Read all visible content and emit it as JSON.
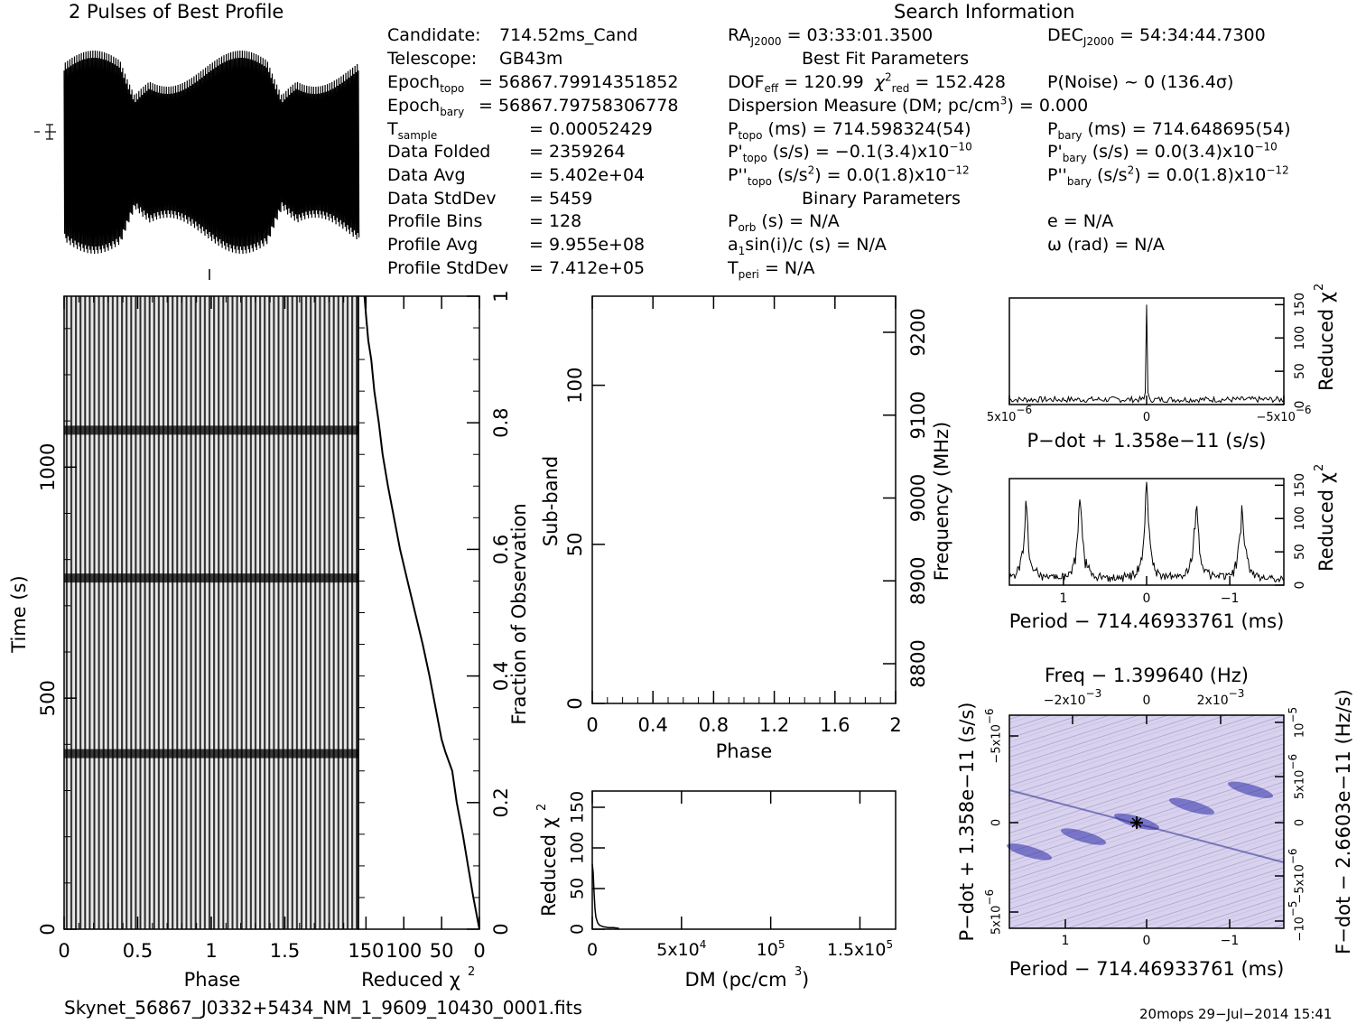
{
  "header": {
    "profile_title": "2 Pulses of Best Profile",
    "search_title": "Search Information",
    "best_fit_title": "Best Fit Parameters",
    "binary_title": "Binary Parameters"
  },
  "info_left": [
    {
      "label": "Candidate:",
      "value": "714.52ms_Cand"
    },
    {
      "label": "Telescope:",
      "value": "GB43m"
    },
    {
      "label": "Epoch",
      "sub": "topo",
      "value": "= 56867.79914351852"
    },
    {
      "label": "Epoch",
      "sub": "bary",
      "value": "= 56867.79758306778"
    },
    {
      "label": "T",
      "sub": "sample",
      "value": "=   0.00052429"
    },
    {
      "label": "Data Folded",
      "value": "=   2359264"
    },
    {
      "label": "Data Avg",
      "value": "=   5.402e+04"
    },
    {
      "label": "Data StdDev",
      "value": "=   5459"
    },
    {
      "label": "Profile Bins",
      "value": "=   128"
    },
    {
      "label": "Profile Avg",
      "value": "=   9.955e+08"
    },
    {
      "label": "Profile StdDev",
      "value": "=   7.412e+05"
    }
  ],
  "search": {
    "ra": "= 03:33:01.3500",
    "dec": "= 54:34:44.7300",
    "dof": "= 120.99",
    "chi2": "= 152.428",
    "pnoise": "P(Noise) ~ 0    (136.4σ)",
    "dm": "Dispersion Measure (DM; pc/cm",
    "dm_value": ") = 0.000",
    "ptopo": "(ms) =  714.598324(54)",
    "pbary": "(ms) =  714.648695(54)",
    "pdtopo": "(s/s) = −0.1(3.4)x10",
    "pdbary": "(s/s) = 0.0(3.4)x10",
    "pddtopo": "(s/s",
    "pddtopo_val": ") = 0.0(1.8)x10",
    "pddbary_val": ") = 0.0(1.8)x10",
    "exp10": "−10",
    "exp12": "−12",
    "porb": "(s) = N/A",
    "e": "e = N/A",
    "a1": "a",
    "a1_rest": "sin(i)/c (s) = N/A",
    "omega": "ω (rad) = N/A",
    "tperi": "= N/A"
  },
  "footer": {
    "filename": "Skynet_56867_J0332+5434_NM_1_9609_10430_0001.fits",
    "stamp": "20mops 29−Jul−2014 15:41"
  },
  "chart_data": [
    {
      "type": "line",
      "name": "profile",
      "title": "2 Pulses of Best Profile",
      "description_shape": "rapidly oscillating profile, envelope narrow in middle near phase 0.4-0.55 and 1.4-1.55"
    },
    {
      "type": "heatmap",
      "name": "time-phase",
      "xlabel": "Phase",
      "ylabel": "Time (s)",
      "x_ticks": [
        "0",
        "0.5",
        "1",
        "1.5"
      ],
      "y_ticks": [
        "0",
        "500",
        "1000"
      ],
      "xlim": [
        0,
        2
      ],
      "ylim": [
        0,
        1370
      ],
      "dark_rows_time": [
        1080,
        760,
        380
      ]
    },
    {
      "type": "line",
      "name": "reduced-chi2-vs-time",
      "xlabel": "Reduced χ",
      "x_ticks": [
        "150",
        "100",
        "50",
        "0"
      ],
      "y2label": "Fraction of Observation",
      "y2_ticks": [
        "0",
        "0.2",
        "0.4",
        "0.6",
        "0.8",
        "1"
      ],
      "points": [
        [
          0,
          0
        ],
        [
          8,
          0.05
        ],
        [
          15,
          0.1
        ],
        [
          22,
          0.15
        ],
        [
          30,
          0.2
        ],
        [
          36,
          0.25
        ],
        [
          45,
          0.28
        ],
        [
          50,
          0.3
        ],
        [
          58,
          0.35
        ],
        [
          66,
          0.4
        ],
        [
          75,
          0.45
        ],
        [
          85,
          0.5
        ],
        [
          95,
          0.55
        ],
        [
          105,
          0.6
        ],
        [
          113,
          0.65
        ],
        [
          121,
          0.7
        ],
        [
          128,
          0.75
        ],
        [
          133,
          0.8
        ],
        [
          139,
          0.85
        ],
        [
          143,
          0.9
        ],
        [
          147,
          0.93
        ],
        [
          150,
          0.97
        ],
        [
          152,
          1.0
        ]
      ]
    },
    {
      "type": "heatmap",
      "name": "subband-phase",
      "xlabel": "Phase",
      "ylabel": "Sub-band",
      "y2label": "Frequency (MHz)",
      "x_ticks": [
        "0",
        "0.4",
        "0.8",
        "1.2",
        "1.6",
        "2"
      ],
      "y_ticks": [
        "0",
        "50",
        "100"
      ],
      "y2_ticks": [
        "8800",
        "8900",
        "9000",
        "9100",
        "9200"
      ],
      "xlim": [
        0,
        2
      ],
      "ylim": [
        0,
        128
      ]
    },
    {
      "type": "line",
      "name": "dm-curve",
      "xlabel": "DM (pc/cm",
      "ylabel": "Reduced χ",
      "x_ticks": [
        "0",
        "5x10",
        "10",
        "1.5x10"
      ],
      "x_exps": [
        "",
        "4",
        "5",
        "5"
      ],
      "y_ticks": [
        "0",
        "50",
        "100",
        "150"
      ],
      "xlim": [
        0,
        170000
      ],
      "ylim": [
        0,
        170
      ],
      "points": [
        [
          0,
          80
        ],
        [
          500,
          70
        ],
        [
          1000,
          45
        ],
        [
          1500,
          25
        ],
        [
          2000,
          15
        ],
        [
          3000,
          8
        ],
        [
          4000,
          5
        ],
        [
          6000,
          3
        ],
        [
          9000,
          2
        ],
        [
          12000,
          2
        ],
        [
          15000,
          1
        ]
      ]
    },
    {
      "type": "line",
      "name": "pdot-curve",
      "xlabel": "P−dot + 1.358e−11 (s/s)",
      "ylabel": "Reduced χ",
      "x_ticks": [
        "5x10",
        "0",
        "−5x10"
      ],
      "x_exps": [
        "−6",
        "",
        "−6"
      ],
      "y_ticks": [
        "0",
        "50",
        "100",
        "150"
      ]
    },
    {
      "type": "line",
      "name": "period-curve",
      "xlabel": "Period − 714.46933761 (ms)",
      "ylabel": "Reduced χ",
      "x_ticks": [
        "1",
        "0",
        "−1"
      ],
      "y_ticks": [
        "0",
        "50",
        "100",
        "150"
      ],
      "peaks_x": [
        1.45,
        0.8,
        0.0,
        -0.6,
        -1.15
      ]
    },
    {
      "type": "heatmap",
      "name": "period-pdot",
      "title": "Freq − 1.399640 (Hz)",
      "xlabel": "Period − 714.46933761 (ms)",
      "ylabel": "P−dot + 1.358e−11 (s/s)",
      "y2label": "F−dot − 2.6603e−11 (Hz/s)",
      "top_ticks": [
        "−2x10",
        "0",
        "2x10"
      ],
      "top_exps": [
        "−3",
        "",
        "−3"
      ],
      "x_ticks": [
        "1",
        "0",
        "−1"
      ],
      "y_ticks": [
        "−5x10",
        "0",
        "5x10"
      ],
      "y_exps": [
        "−6",
        "",
        "−6"
      ],
      "y2_ticks": [
        "10",
        "5x10",
        "0",
        "−5x10",
        "−10"
      ],
      "y2_exps": [
        "−5",
        "−6",
        "",
        "−6",
        "−5"
      ]
    }
  ]
}
